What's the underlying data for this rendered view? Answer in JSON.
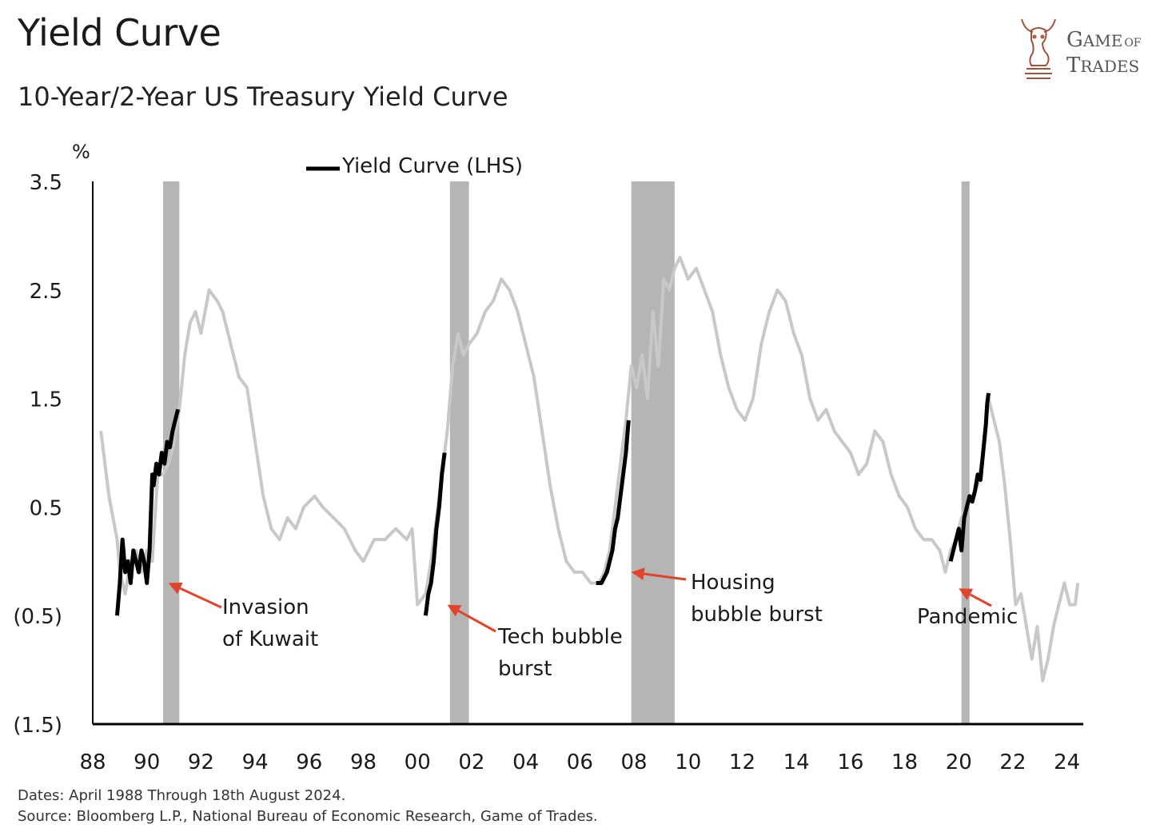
{
  "header": {
    "title": "Yield Curve",
    "subtitle": "10-Year/2-Year US Treasury Yield Curve"
  },
  "logo": {
    "line1_big": "G",
    "line1_rest": "AME",
    "line1_small": "OF",
    "line2_big": "T",
    "line2_rest": "RADES",
    "icon": "bull-knight-icon"
  },
  "footer": {
    "dates": "Dates: April 1988 Through 18th August 2024.",
    "source": "Source: Bloomberg L.P., National Bureau of Economic Research, Game of Trades."
  },
  "colors": {
    "line_main": "#c8c8c8",
    "line_highlight": "#000000",
    "recession": "#b5b5b5",
    "arrow": "#e0452b",
    "axis": "#000000"
  },
  "chart_data": {
    "type": "line",
    "title": "",
    "ylabel": "%",
    "xlabel": "",
    "ylim": [
      -1.5,
      3.5
    ],
    "xlim": [
      1988,
      2024.6
    ],
    "yticks": [
      3.5,
      2.5,
      1.5,
      0.5,
      -0.5,
      -1.5
    ],
    "ytick_labels": [
      "3.5",
      "2.5",
      "1.5",
      "0.5",
      "(0.5)",
      "(1.5)"
    ],
    "xticks": [
      1988,
      1990,
      1992,
      1994,
      1996,
      1998,
      2000,
      2002,
      2004,
      2006,
      2008,
      2010,
      2012,
      2014,
      2016,
      2018,
      2020,
      2022,
      2024
    ],
    "xtick_labels": [
      "88",
      "90",
      "92",
      "94",
      "96",
      "98",
      "00",
      "02",
      "04",
      "06",
      "08",
      "10",
      "12",
      "14",
      "16",
      "18",
      "20",
      "22",
      "24"
    ],
    "grid": false,
    "legend": {
      "label": "Yield Curve (LHS)",
      "position": "top-center"
    },
    "recessions": [
      [
        1990.6,
        1991.2
      ],
      [
        2001.2,
        2001.9
      ],
      [
        2007.9,
        2009.5
      ],
      [
        2020.1,
        2020.4
      ]
    ],
    "series": [
      {
        "name": "Yield Curve (LHS)",
        "x": [
          1988.3,
          1988.6,
          1988.9,
          1989.0,
          1989.2,
          1989.4,
          1989.6,
          1989.8,
          1990.0,
          1990.2,
          1990.4,
          1990.6,
          1990.8,
          1991.0,
          1991.2,
          1991.4,
          1991.6,
          1991.8,
          1992.0,
          1992.3,
          1992.6,
          1992.8,
          1993.1,
          1993.4,
          1993.7,
          1994.0,
          1994.3,
          1994.6,
          1994.9,
          1995.2,
          1995.5,
          1995.8,
          1996.2,
          1996.5,
          1996.9,
          1997.3,
          1997.7,
          1998.0,
          1998.4,
          1998.8,
          1999.2,
          1999.6,
          1999.8,
          2000.0,
          2000.3,
          2000.5,
          2000.7,
          2000.9,
          2001.1,
          2001.3,
          2001.5,
          2001.7,
          2001.9,
          2002.2,
          2002.5,
          2002.8,
          2003.1,
          2003.4,
          2003.7,
          2004.0,
          2004.3,
          2004.6,
          2004.9,
          2005.2,
          2005.5,
          2005.8,
          2006.1,
          2006.4,
          2006.7,
          2006.9,
          2007.1,
          2007.3,
          2007.5,
          2007.7,
          2007.9,
          2008.1,
          2008.3,
          2008.5,
          2008.7,
          2008.9,
          2009.1,
          2009.3,
          2009.5,
          2009.7,
          2010.0,
          2010.3,
          2010.6,
          2010.9,
          2011.2,
          2011.5,
          2011.8,
          2012.1,
          2012.4,
          2012.7,
          2013.0,
          2013.3,
          2013.6,
          2013.9,
          2014.2,
          2014.5,
          2014.8,
          2015.1,
          2015.4,
          2015.7,
          2016.0,
          2016.3,
          2016.6,
          2016.9,
          2017.2,
          2017.5,
          2017.8,
          2018.1,
          2018.4,
          2018.7,
          2019.0,
          2019.3,
          2019.5,
          2019.7,
          2019.9,
          2020.1,
          2020.3,
          2020.5,
          2020.7,
          2020.9,
          2021.1,
          2021.3,
          2021.5,
          2021.7,
          2021.9,
          2022.1,
          2022.3,
          2022.5,
          2022.7,
          2022.9,
          2023.1,
          2023.3,
          2023.5,
          2023.7,
          2023.9,
          2024.1,
          2024.3,
          2024.4
        ],
        "values": [
          1.2,
          0.6,
          0.2,
          -0.1,
          -0.3,
          0.0,
          0.1,
          -0.1,
          0.1,
          0.0,
          0.8,
          0.8,
          0.9,
          1.1,
          1.4,
          1.9,
          2.2,
          2.3,
          2.1,
          2.5,
          2.4,
          2.3,
          2.0,
          1.7,
          1.6,
          1.1,
          0.6,
          0.3,
          0.2,
          0.4,
          0.3,
          0.5,
          0.6,
          0.5,
          0.4,
          0.3,
          0.1,
          0.0,
          0.2,
          0.2,
          0.3,
          0.2,
          0.3,
          -0.4,
          -0.3,
          0.0,
          0.4,
          0.8,
          1.2,
          1.8,
          2.1,
          1.9,
          2.0,
          2.1,
          2.3,
          2.4,
          2.6,
          2.5,
          2.3,
          2.0,
          1.7,
          1.2,
          0.7,
          0.3,
          0.0,
          -0.1,
          -0.1,
          -0.2,
          -0.2,
          -0.1,
          0.1,
          0.5,
          0.9,
          1.3,
          1.8,
          1.6,
          1.9,
          1.5,
          2.3,
          1.8,
          2.6,
          2.5,
          2.7,
          2.8,
          2.6,
          2.7,
          2.5,
          2.3,
          1.9,
          1.6,
          1.4,
          1.3,
          1.5,
          2.0,
          2.3,
          2.5,
          2.4,
          2.1,
          1.9,
          1.5,
          1.3,
          1.4,
          1.2,
          1.1,
          1.0,
          0.8,
          0.9,
          1.2,
          1.1,
          0.8,
          0.6,
          0.5,
          0.3,
          0.2,
          0.2,
          0.1,
          -0.1,
          0.1,
          0.2,
          0.4,
          0.5,
          0.6,
          0.7,
          1.0,
          1.5,
          1.3,
          1.1,
          0.7,
          0.2,
          -0.4,
          -0.3,
          -0.6,
          -0.9,
          -0.6,
          -1.1,
          -0.9,
          -0.6,
          -0.4,
          -0.2,
          -0.4,
          -0.4,
          -0.2
        ]
      }
    ],
    "highlight_segments": [
      {
        "x": [
          1988.9,
          1989.0,
          1989.1,
          1989.2,
          1989.3,
          1989.4,
          1989.5,
          1989.6,
          1989.7,
          1989.8,
          1989.9,
          1990.0,
          1990.1,
          1990.2,
          1990.25,
          1990.35,
          1990.45,
          1990.55,
          1990.65,
          1990.75,
          1990.85,
          1990.95,
          1991.05,
          1991.15
        ],
        "values": [
          -0.5,
          -0.2,
          0.2,
          -0.1,
          0.0,
          -0.2,
          0.1,
          0.0,
          -0.1,
          0.1,
          0.0,
          -0.2,
          0.1,
          0.8,
          0.7,
          0.9,
          0.8,
          1.0,
          0.9,
          1.1,
          1.05,
          1.2,
          1.3,
          1.4
        ]
      },
      {
        "x": [
          2000.3,
          2000.4,
          2000.5,
          2000.6,
          2000.7,
          2000.8,
          2000.9,
          2001.0
        ],
        "values": [
          -0.5,
          -0.3,
          -0.2,
          0.0,
          0.3,
          0.5,
          0.8,
          1.0
        ]
      },
      {
        "x": [
          2006.6,
          2006.8,
          2007.0,
          2007.1,
          2007.2,
          2007.3,
          2007.4,
          2007.5,
          2007.6,
          2007.7,
          2007.8
        ],
        "values": [
          -0.2,
          -0.2,
          -0.1,
          0.0,
          0.1,
          0.3,
          0.4,
          0.6,
          0.8,
          1.0,
          1.3
        ]
      },
      {
        "x": [
          2019.7,
          2019.8,
          2019.9,
          2020.0,
          2020.1,
          2020.2,
          2020.3,
          2020.4,
          2020.5,
          2020.6,
          2020.7,
          2020.8,
          2020.9,
          2021.0,
          2021.05,
          2021.1
        ],
        "values": [
          0.0,
          0.1,
          0.2,
          0.3,
          0.1,
          0.4,
          0.5,
          0.6,
          0.55,
          0.65,
          0.8,
          0.75,
          1.0,
          1.25,
          1.45,
          1.55
        ]
      }
    ],
    "annotations": [
      {
        "lines": [
          "Invasion",
          "of Kuwait"
        ],
        "arrow_to": [
          1990.8,
          -0.2
        ]
      },
      {
        "lines": [
          "Tech bubble",
          "burst"
        ],
        "arrow_to": [
          2001.1,
          -0.4
        ]
      },
      {
        "lines": [
          "Housing",
          "bubble burst"
        ],
        "arrow_to": [
          2007.9,
          -0.1
        ]
      },
      {
        "lines": [
          "Pandemic"
        ],
        "arrow_to": [
          2020.0,
          -0.25
        ]
      }
    ]
  }
}
